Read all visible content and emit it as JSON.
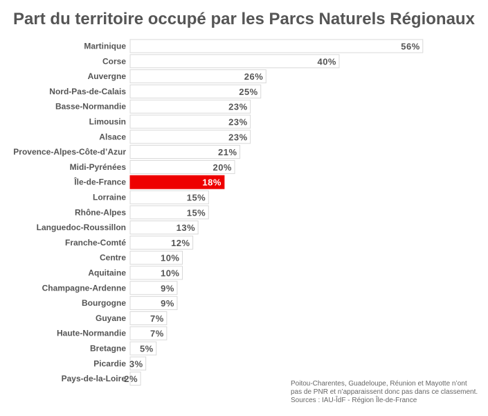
{
  "title": "Part du territoire occupé par les Parcs Naturels Régionaux",
  "colors": {
    "bar_fill": "#ffffff",
    "bar_stroke": "#d8d8d8",
    "highlight_fill": "#ee0000",
    "text": "#555555",
    "highlight_text": "#ffffff"
  },
  "chart_data": {
    "type": "bar",
    "orientation": "horizontal",
    "title": "Part du territoire occupé par les Parcs Naturels Régionaux",
    "xlabel": "",
    "ylabel": "",
    "value_suffix": "%",
    "grid": false,
    "legend": "none",
    "categories": [
      "Martinique",
      "Corse",
      "Auvergne",
      "Nord-Pas-de-Calais",
      "Basse-Normandie",
      "Limousin",
      "Alsace",
      "Provence-Alpes-Côte-d’Azur",
      "Midi-Pyrénées",
      "Île-de-France",
      "Lorraine",
      "Rhône-Alpes",
      "Languedoc-Roussillon",
      "Franche-Comté",
      "Centre",
      "Aquitaine",
      "Champagne-Ardenne",
      "Bourgogne",
      "Guyane",
      "Haute-Normandie",
      "Bretagne",
      "Picardie",
      "Pays-de-la-Loire"
    ],
    "values": [
      56,
      40,
      26,
      25,
      23,
      23,
      23,
      21,
      20,
      18,
      15,
      15,
      13,
      12,
      10,
      10,
      9,
      9,
      7,
      7,
      5,
      3,
      2
    ],
    "highlight": "Île-de-France"
  },
  "footnote": {
    "lines": [
      "Poitou-Charentes, Guadeloupe, Réunion et Mayotte n’ont",
      "pas de PNR et n’apparaissent donc pas dans ce classement.",
      "Sources : IAU-ÎdF - Région Île-de-France"
    ]
  }
}
